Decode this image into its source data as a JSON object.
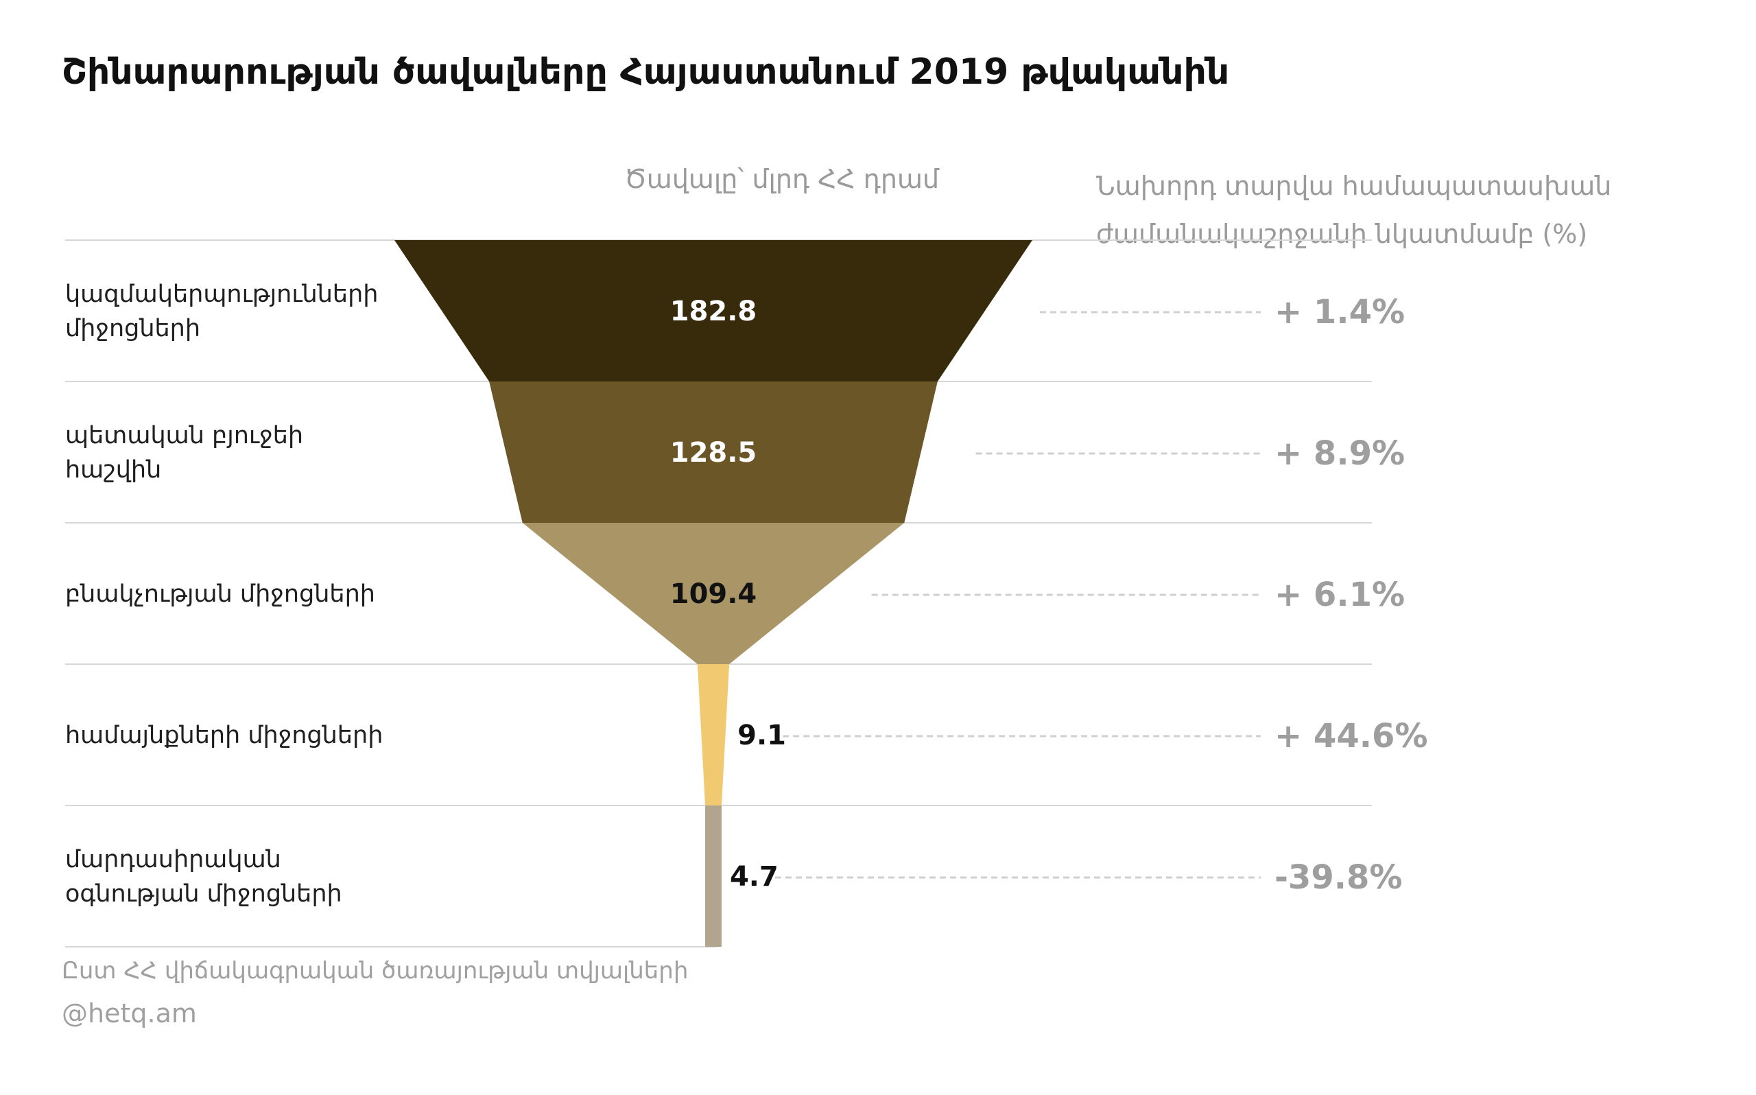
{
  "chart_data": {
    "type": "funnel",
    "title": "Շինարարության ծավալները Հայաստանում 2019 թվականին",
    "value_header": "Ծավալը՝ մլրդ ՀՀ դրամ",
    "change_header": [
      "Նախորդ տարվա համապատասխան",
      "ժամանակաշրջանի նկատմամբ (%)"
    ],
    "categories": [
      [
        "կազմակերպությունների",
        "միջոցների"
      ],
      [
        "պետական բյուջեի",
        "հաշվին"
      ],
      [
        "բնակչության միջոցների"
      ],
      [
        "համայնքների միջոցների"
      ],
      [
        "մարդասիրական",
        "օգնության միջոցների"
      ]
    ],
    "values": [
      182.8,
      128.5,
      109.4,
      9.1,
      4.7
    ],
    "value_labels": [
      "182.8",
      "128.5",
      "109.4",
      "9.1",
      "4.7"
    ],
    "changes": [
      "+ 1.4%",
      "+ 8.9%",
      "+ 6.1%",
      "+ 44.6%",
      "-39.8%"
    ],
    "colors": [
      "#372b0c",
      "#6b5628",
      "#a99566",
      "#f0c970",
      "#b1a58f"
    ],
    "label_colors": [
      "#ffffff",
      "#ffffff",
      "#111111",
      "#111111",
      "#111111"
    ]
  },
  "footer": {
    "source": "Ըստ ՀՀ վիճակագրական ծառայության տվյալների",
    "handle": "@hetq.am"
  }
}
